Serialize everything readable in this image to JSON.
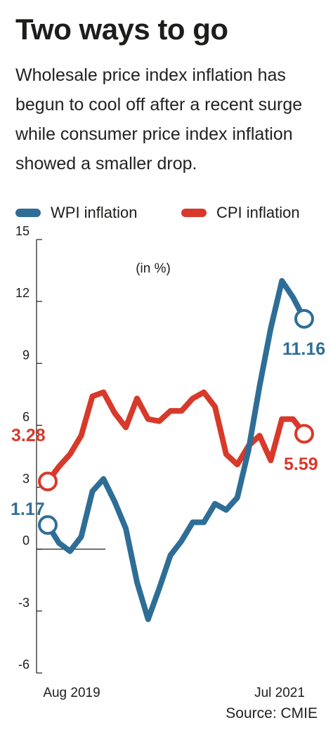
{
  "header": {
    "title": "Two ways to go",
    "subtitle": "Wholesale price index inflation has begun to cool off after a recent surge while consumer price index inflation showed a smaller drop."
  },
  "legend": {
    "wpi_label": "WPI inflation",
    "cpi_label": "CPI inflation"
  },
  "source": "Source: CMIE",
  "chart_data": {
    "type": "line",
    "unit_label": "(in %)",
    "x_tick_labels": [
      "Aug 2019",
      "Jul 2021"
    ],
    "x": [
      "Aug 2019",
      "Sep 2019",
      "Oct 2019",
      "Nov 2019",
      "Dec 2019",
      "Jan 2020",
      "Feb 2020",
      "Mar 2020",
      "Apr 2020",
      "May 2020",
      "Jun 2020",
      "Jul 2020",
      "Aug 2020",
      "Sep 2020",
      "Oct 2020",
      "Nov 2020",
      "Dec 2020",
      "Jan 2021",
      "Feb 2021",
      "Mar 2021",
      "Apr 2021",
      "May 2021",
      "Jun 2021",
      "Jul 2021"
    ],
    "ylim": [
      -6,
      15
    ],
    "yticks": [
      -6,
      -3,
      0,
      3,
      6,
      9,
      12,
      15
    ],
    "grid": false,
    "legend_position": "top",
    "series": [
      {
        "name": "WPI inflation",
        "color": "#2e6e96",
        "values": [
          1.17,
          0.3,
          -0.1,
          0.6,
          2.8,
          3.4,
          2.3,
          1.0,
          -1.6,
          -3.4,
          -1.9,
          -0.3,
          0.4,
          1.3,
          1.3,
          2.2,
          1.9,
          2.5,
          4.8,
          7.9,
          10.7,
          13.0,
          12.2,
          11.16
        ],
        "first_label": "1.17",
        "last_label": "11.16"
      },
      {
        "name": "CPI inflation",
        "color": "#d8392a",
        "values": [
          3.28,
          4.0,
          4.6,
          5.5,
          7.4,
          7.6,
          6.6,
          5.9,
          7.3,
          6.3,
          6.2,
          6.7,
          6.7,
          7.3,
          7.6,
          6.9,
          4.6,
          4.1,
          5.0,
          5.5,
          4.3,
          6.3,
          6.3,
          5.59
        ],
        "first_label": "3.28",
        "last_label": "5.59"
      }
    ]
  }
}
